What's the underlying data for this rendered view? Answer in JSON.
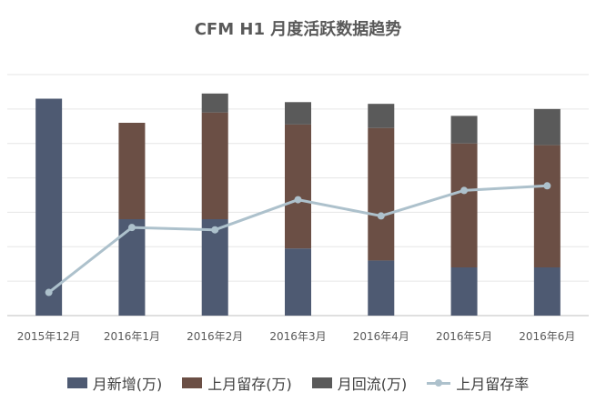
{
  "chart_data": {
    "type": "bar",
    "stacked": true,
    "title": "CFM H1 月度活跃数据趋势",
    "categories": [
      "2015年12月",
      "2016年1月",
      "2016年2月",
      "2016年3月",
      "2016年4月",
      "2016年5月",
      "2016年6月"
    ],
    "series": [
      {
        "name": "月新增(万)",
        "type": "bar",
        "color": "#4e5a72",
        "values": [
          6.3,
          2.8,
          2.8,
          1.95,
          1.6,
          1.4,
          1.4
        ]
      },
      {
        "name": "上月留存(万)",
        "type": "bar",
        "color": "#6b4f45",
        "values": [
          0,
          2.8,
          3.1,
          3.6,
          3.85,
          3.6,
          3.55
        ]
      },
      {
        "name": "月回流(万)",
        "type": "bar",
        "color": "#5a5a5a",
        "values": [
          0,
          0,
          0.55,
          0.65,
          0.7,
          0.8,
          1.05
        ]
      },
      {
        "name": "上月留存率",
        "type": "line",
        "color": "#adc1cc",
        "values": [
          0.1,
          0.38,
          0.37,
          0.5,
          0.43,
          0.54,
          0.56
        ]
      }
    ],
    "ylim_bars": [
      0,
      7
    ],
    "ylim_line": [
      0,
      1.04
    ],
    "grid": true,
    "legend": "bottom"
  }
}
